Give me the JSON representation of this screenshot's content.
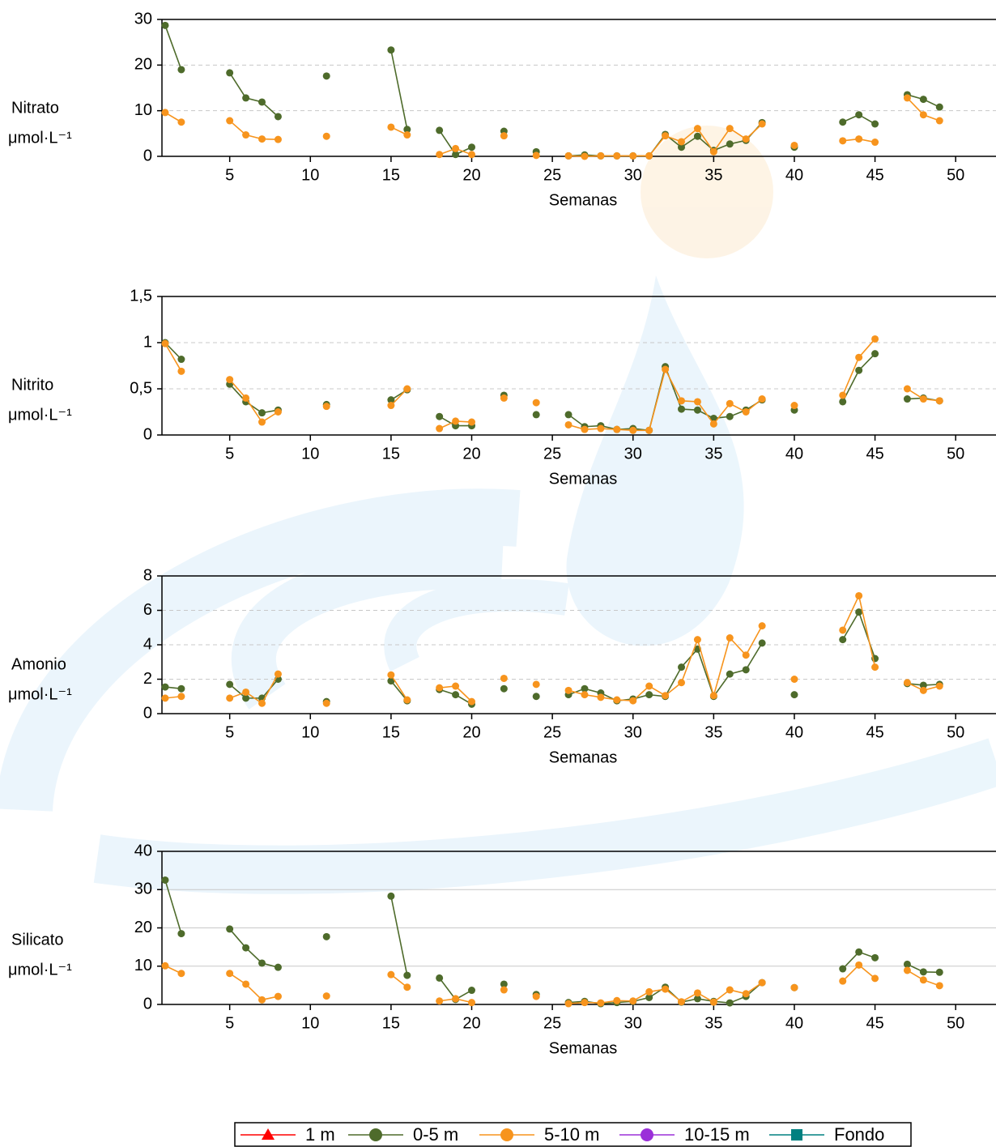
{
  "chart_data": [
    {
      "type": "line",
      "ylabel": [
        "Nitrato",
        "μmol·L⁻¹"
      ],
      "xlabel": "Semanas",
      "x": [
        1,
        2,
        3,
        4,
        5,
        6,
        7,
        8,
        9,
        10,
        11,
        12,
        13,
        14,
        15,
        16,
        17,
        18,
        19,
        20,
        21,
        22,
        23,
        24,
        25,
        26,
        27,
        28,
        29,
        30,
        31,
        32,
        33,
        34,
        35,
        36,
        37,
        38,
        39,
        40,
        41,
        42,
        43,
        44,
        45,
        46,
        47,
        48,
        49
      ],
      "xlim": [
        0.8,
        52.5
      ],
      "xticks": [
        5,
        10,
        15,
        20,
        25,
        30,
        35,
        40,
        45,
        50
      ],
      "ylim": [
        0,
        30
      ],
      "yticks": [
        0,
        10,
        20,
        30
      ],
      "grid": "dashed",
      "series": [
        {
          "color": "#4e6b2b",
          "values": [
            28.7,
            19,
            null,
            null,
            18.3,
            12.8,
            11.9,
            8.7,
            null,
            null,
            17.6,
            null,
            null,
            null,
            23.3,
            5.9,
            null,
            5.7,
            0.4,
            2,
            null,
            5.5,
            null,
            1,
            null,
            0.1,
            0.3,
            0.1,
            0.1,
            0.1,
            0.1,
            4.8,
            2,
            4.4,
            1.3,
            2.7,
            3.5,
            7.4,
            null,
            2,
            null,
            null,
            7.5,
            9.1,
            7.1,
            null,
            13.5,
            12.5,
            10.8
          ]
        },
        {
          "color": "#f7941d",
          "values": [
            9.6,
            7.5,
            null,
            null,
            7.8,
            4.7,
            3.8,
            3.7,
            null,
            null,
            4.4,
            null,
            null,
            null,
            6.4,
            4.7,
            null,
            0.4,
            1.7,
            0.4,
            null,
            4.5,
            null,
            0.2,
            null,
            0.1,
            0,
            0.1,
            0.1,
            0.1,
            0.1,
            4.5,
            3.2,
            6.1,
            1,
            6.1,
            3.8,
            7.1,
            null,
            2.4,
            null,
            null,
            3.4,
            3.8,
            3.1,
            null,
            12.8,
            9.1,
            7.8
          ]
        }
      ]
    },
    {
      "type": "line",
      "ylabel": [
        "Nitrito",
        "μmol·L⁻¹"
      ],
      "xlabel": "Semanas",
      "x": [
        1,
        2,
        3,
        4,
        5,
        6,
        7,
        8,
        9,
        10,
        11,
        12,
        13,
        14,
        15,
        16,
        17,
        18,
        19,
        20,
        21,
        22,
        23,
        24,
        25,
        26,
        27,
        28,
        29,
        30,
        31,
        32,
        33,
        34,
        35,
        36,
        37,
        38,
        39,
        40,
        41,
        42,
        43,
        44,
        45,
        46,
        47,
        48,
        49
      ],
      "xlim": [
        0.8,
        52.5
      ],
      "xticks": [
        5,
        10,
        15,
        20,
        25,
        30,
        35,
        40,
        45,
        50
      ],
      "ylim": [
        0,
        1.5
      ],
      "yticks": [
        0,
        {
          "value": 0.5,
          "label": "0,5"
        },
        1,
        {
          "value": 1.5,
          "label": "1,5"
        }
      ],
      "grid": "dashed",
      "series": [
        {
          "color": "#4e6b2b",
          "values": [
            1,
            0.82,
            null,
            null,
            0.55,
            0.36,
            0.24,
            0.27,
            null,
            null,
            0.33,
            null,
            null,
            null,
            0.38,
            0.49,
            null,
            0.2,
            0.1,
            0.1,
            null,
            0.43,
            null,
            0.22,
            null,
            0.22,
            0.09,
            0.1,
            0.06,
            0.07,
            0.05,
            0.74,
            0.28,
            0.27,
            0.18,
            0.2,
            0.27,
            0.38,
            null,
            0.27,
            null,
            null,
            0.36,
            0.7,
            0.88,
            null,
            0.39,
            0.4,
            0.37
          ]
        },
        {
          "color": "#f7941d",
          "values": [
            0.99,
            0.69,
            null,
            null,
            0.6,
            0.4,
            0.14,
            0.25,
            null,
            null,
            0.31,
            null,
            null,
            null,
            0.32,
            0.5,
            null,
            0.07,
            0.15,
            0.14,
            null,
            0.4,
            null,
            0.35,
            null,
            0.11,
            0.06,
            0.07,
            0.06,
            0.05,
            0.05,
            0.71,
            0.37,
            0.36,
            0.12,
            0.34,
            0.25,
            0.39,
            null,
            0.32,
            null,
            null,
            0.43,
            0.84,
            1.04,
            null,
            0.5,
            0.39,
            0.37
          ]
        }
      ]
    },
    {
      "type": "line",
      "ylabel": [
        "Amonio",
        "μmol·L⁻¹"
      ],
      "xlabel": "Semanas",
      "x": [
        1,
        2,
        3,
        4,
        5,
        6,
        7,
        8,
        9,
        10,
        11,
        12,
        13,
        14,
        15,
        16,
        17,
        18,
        19,
        20,
        21,
        22,
        23,
        24,
        25,
        26,
        27,
        28,
        29,
        30,
        31,
        32,
        33,
        34,
        35,
        36,
        37,
        38,
        39,
        40,
        41,
        42,
        43,
        44,
        45,
        46,
        47,
        48,
        49
      ],
      "xlim": [
        0.8,
        52.5
      ],
      "xticks": [
        5,
        10,
        15,
        20,
        25,
        30,
        35,
        40,
        45,
        50
      ],
      "ylim": [
        0,
        8
      ],
      "yticks": [
        0,
        2,
        4,
        6,
        8
      ],
      "grid": "dashed",
      "series": [
        {
          "color": "#4e6b2b",
          "values": [
            1.55,
            1.45,
            null,
            null,
            1.7,
            0.9,
            0.9,
            2,
            null,
            null,
            0.7,
            null,
            null,
            null,
            1.9,
            0.75,
            null,
            1.4,
            1.1,
            0.55,
            null,
            1.45,
            null,
            1,
            null,
            1.1,
            1.45,
            1.2,
            0.75,
            0.85,
            1.1,
            1,
            2.7,
            3.75,
            1,
            2.3,
            2.55,
            4.1,
            null,
            1.1,
            null,
            null,
            4.3,
            5.9,
            3.2,
            null,
            1.75,
            1.65,
            1.7
          ]
        },
        {
          "color": "#f7941d",
          "values": [
            0.9,
            1,
            null,
            null,
            0.9,
            1.25,
            0.6,
            2.3,
            null,
            null,
            0.6,
            null,
            null,
            null,
            2.25,
            0.8,
            null,
            1.5,
            1.6,
            0.7,
            null,
            2.05,
            null,
            1.7,
            null,
            1.35,
            1.1,
            0.95,
            0.8,
            0.75,
            1.6,
            1.05,
            1.8,
            4.3,
            1.05,
            4.4,
            3.4,
            5.1,
            null,
            2,
            null,
            null,
            4.85,
            6.85,
            2.7,
            null,
            1.8,
            1.35,
            1.6
          ]
        }
      ]
    },
    {
      "type": "line",
      "ylabel": [
        "Silicato",
        "μmol·L⁻¹"
      ],
      "xlabel": "Semanas",
      "x": [
        1,
        2,
        3,
        4,
        5,
        6,
        7,
        8,
        9,
        10,
        11,
        12,
        13,
        14,
        15,
        16,
        17,
        18,
        19,
        20,
        21,
        22,
        23,
        24,
        25,
        26,
        27,
        28,
        29,
        30,
        31,
        32,
        33,
        34,
        35,
        36,
        37,
        38,
        39,
        40,
        41,
        42,
        43,
        44,
        45,
        46,
        47,
        48,
        49
      ],
      "xlim": [
        0.8,
        52.5
      ],
      "xticks": [
        5,
        10,
        15,
        20,
        25,
        30,
        35,
        40,
        45,
        50
      ],
      "ylim": [
        0,
        40
      ],
      "yticks": [
        0,
        10,
        20,
        30,
        40
      ],
      "grid": "solid",
      "series": [
        {
          "color": "#4e6b2b",
          "values": [
            32.5,
            18.5,
            null,
            null,
            19.7,
            14.8,
            10.8,
            9.7,
            null,
            null,
            17.7,
            null,
            null,
            null,
            28.3,
            7.6,
            null,
            6.9,
            1.3,
            3.7,
            null,
            5.3,
            null,
            2.6,
            null,
            0.5,
            0.8,
            0.2,
            0.5,
            0.8,
            1.8,
            4.5,
            0.6,
            1.5,
            0.8,
            0.4,
            2.1,
            5.7,
            null,
            4.4,
            null,
            null,
            9.3,
            13.7,
            12.2,
            null,
            10.5,
            8.5,
            8.4
          ]
        },
        {
          "color": "#f7941d",
          "values": [
            10.1,
            8.1,
            null,
            null,
            8.1,
            5.3,
            1.2,
            2.1,
            null,
            null,
            2.2,
            null,
            null,
            null,
            7.8,
            4.5,
            null,
            0.9,
            1.5,
            0.5,
            null,
            3.8,
            null,
            2.1,
            null,
            0.2,
            0.5,
            0.4,
            1,
            0.9,
            3.3,
            4,
            0.7,
            3,
            0.6,
            3.8,
            2.8,
            5.7,
            null,
            4.4,
            null,
            null,
            6.1,
            10.3,
            6.8,
            null,
            8.9,
            6.4,
            4.9
          ]
        }
      ]
    }
  ],
  "legend": [
    {
      "name": "1 m",
      "color": "#ff0000",
      "marker": "triangle"
    },
    {
      "name": "0-5 m",
      "color": "#4e6b2b",
      "marker": "circle"
    },
    {
      "name": "5-10 m",
      "color": "#f7941d",
      "marker": "circle"
    },
    {
      "name": "10-15 m",
      "color": "#9b30d9",
      "marker": "circle"
    },
    {
      "name": "Fondo",
      "color": "#008080",
      "marker": "square"
    }
  ]
}
